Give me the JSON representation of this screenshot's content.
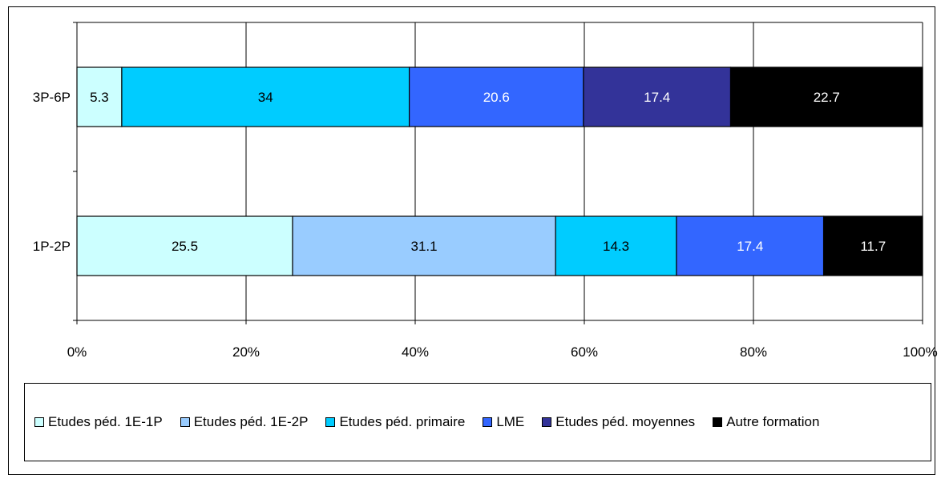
{
  "chart_data": {
    "type": "bar",
    "orientation": "horizontal",
    "stacked": true,
    "percent_stacked": true,
    "categories": [
      "3P-6P",
      "1P-2P"
    ],
    "series": [
      {
        "name": "Etudes péd. 1E-1P",
        "color": "#ccffff",
        "label_color": "#000000",
        "values": [
          5.3,
          25.5
        ]
      },
      {
        "name": "Etudes péd. 1E-2P",
        "color": "#99ccff",
        "label_color": "#000000",
        "values": [
          0,
          31.1
        ]
      },
      {
        "name": "Etudes péd. primaire",
        "color": "#00ccff",
        "label_color": "#000000",
        "values": [
          34,
          14.3
        ]
      },
      {
        "name": "LME",
        "color": "#3366ff",
        "label_color": "#ffffff",
        "values": [
          20.6,
          17.4
        ]
      },
      {
        "name": "Etudes péd. moyennes",
        "color": "#333399",
        "label_color": "#ffffff",
        "values": [
          17.4,
          0
        ]
      },
      {
        "name": "Autre formation",
        "color": "#000000",
        "label_color": "#ffffff",
        "values": [
          22.7,
          11.7
        ]
      }
    ],
    "data_labels": [
      [
        "5.3",
        "",
        "34",
        "20.6",
        "17.4",
        "22.7"
      ],
      [
        "25.5",
        "31.1",
        "14.3",
        "17.4",
        "",
        "11.7"
      ]
    ],
    "x_ticks": [
      "0%",
      "20%",
      "40%",
      "60%",
      "80%",
      "100%"
    ],
    "xlim": [
      0,
      100
    ],
    "grid": "vertical",
    "legend_position": "bottom",
    "title": "",
    "xlabel": "",
    "ylabel": ""
  }
}
